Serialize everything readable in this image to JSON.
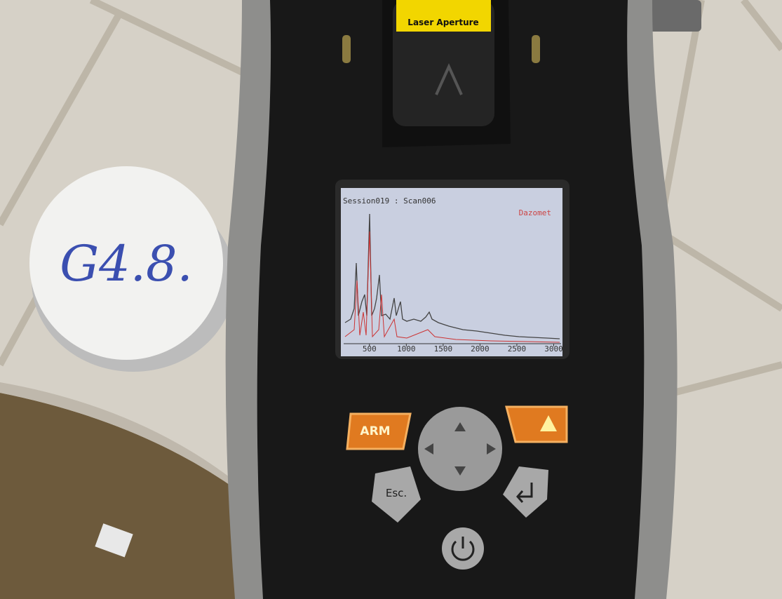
{
  "device": {
    "label": "Laser Aperture"
  },
  "cap": {
    "label": "G4.8."
  },
  "screen": {
    "title": "Session019 : Scan006",
    "compound": "Dazomet",
    "xlim": [
      150,
      3100
    ],
    "xticks": [
      500,
      1000,
      1500,
      2000,
      2500,
      3000
    ]
  },
  "buttons": {
    "arm": "ARM",
    "esc": "Esc."
  }
}
